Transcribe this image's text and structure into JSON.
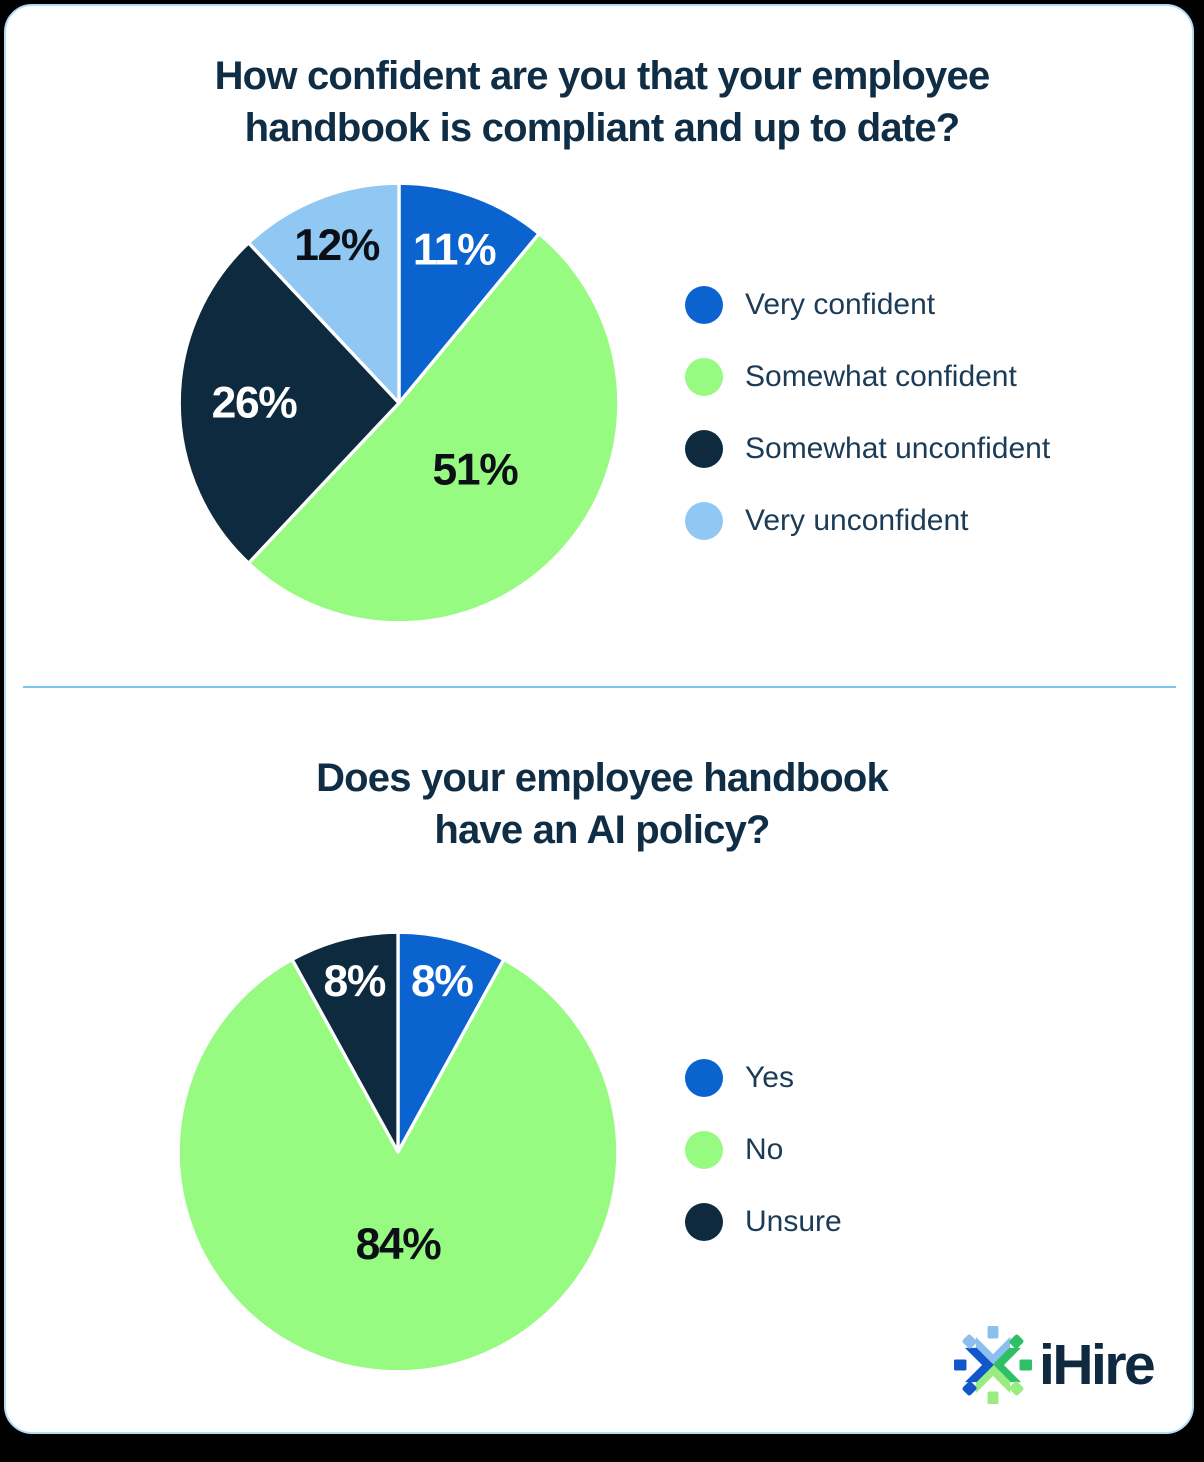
{
  "theme": {
    "page_bg": "#000000",
    "card_bg": "#ffffff",
    "card_border": "#b5dbf4",
    "divider": "#7cc7f0",
    "title_color": "#0f2e46",
    "legend_text": "#1b3b57",
    "logo_text": "#0f2940"
  },
  "sections": [
    {
      "title_lines": [
        "How confident are you that your employee",
        "handbook is compliant and up to date?"
      ]
    },
    {
      "title_lines": [
        "Does your employee handbook",
        "have an AI policy?"
      ]
    }
  ],
  "logo": {
    "text": "iHire",
    "icon_colors": {
      "top": "#8cbfee",
      "right": "#2fbf66",
      "bottom": "#98ec81",
      "left": "#1157c9"
    }
  },
  "chart_data": [
    {
      "type": "pie",
      "title": "How confident are you that your employee handbook is compliant and up to date?",
      "labels": [
        "Very confident",
        "Somewhat confident",
        "Somewhat unconfident",
        "Very unconfident"
      ],
      "values": [
        11,
        51,
        26,
        12
      ],
      "unit": "%",
      "colors": [
        "#0b63cf",
        "#97fa81",
        "#0e2a3f",
        "#90c8f3"
      ],
      "label_colors": [
        "#ffffff",
        "#0c1016",
        "#ffffff",
        "#0c1016"
      ],
      "label_radius_fractions": [
        0.74,
        0.46,
        0.66,
        0.77
      ],
      "start_angle_deg": 0,
      "direction": "clockwise",
      "legend_position": "right"
    },
    {
      "type": "pie",
      "title": "Does your employee handbook have an AI policy?",
      "labels": [
        "Yes",
        "No",
        "Unsure"
      ],
      "values": [
        8,
        84,
        8
      ],
      "unit": "%",
      "colors": [
        "#0b63cf",
        "#97fa81",
        "#0e2a3f"
      ],
      "label_colors": [
        "#ffffff",
        "#0c1016",
        "#ffffff"
      ],
      "label_radius_fractions": [
        0.8,
        0.42,
        0.8
      ],
      "start_angle_deg": 0,
      "direction": "clockwise",
      "legend_position": "right"
    }
  ]
}
